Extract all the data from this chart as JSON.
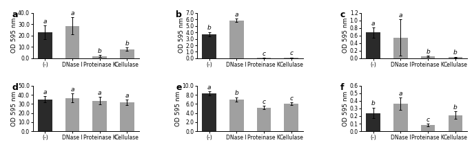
{
  "subplots": [
    {
      "label": "a",
      "ylim": [
        0,
        40.0
      ],
      "yticks": [
        0.0,
        10.0,
        20.0,
        30.0,
        40.0
      ],
      "ylabel": "OD 595 nm",
      "bars": [
        {
          "value": 23.0,
          "err": 6.0,
          "color": "#2a2a2a",
          "letter": "a"
        },
        {
          "value": 28.5,
          "err": 7.5,
          "color": "#a0a0a0",
          "letter": "a"
        },
        {
          "value": 2.0,
          "err": 0.8,
          "color": "#a0a0a0",
          "letter": "b"
        },
        {
          "value": 8.0,
          "err": 1.5,
          "color": "#a0a0a0",
          "letter": "b"
        }
      ]
    },
    {
      "label": "b",
      "ylim": [
        0,
        7.0
      ],
      "yticks": [
        0.0,
        1.0,
        2.0,
        3.0,
        4.0,
        5.0,
        6.0,
        7.0
      ],
      "ylabel": "OD 595 nm",
      "bars": [
        {
          "value": 3.7,
          "err": 0.35,
          "color": "#2a2a2a",
          "letter": "b"
        },
        {
          "value": 5.85,
          "err": 0.28,
          "color": "#a0a0a0",
          "letter": "a"
        },
        {
          "value": 0.05,
          "err": 0.02,
          "color": "#a0a0a0",
          "letter": "c"
        },
        {
          "value": 0.1,
          "err": 0.04,
          "color": "#a0a0a0",
          "letter": "c"
        }
      ]
    },
    {
      "label": "c",
      "ylim": [
        0,
        1.2
      ],
      "yticks": [
        0.0,
        0.2,
        0.4,
        0.6,
        0.8,
        1.0,
        1.2
      ],
      "ylabel": "OD 595 nm",
      "bars": [
        {
          "value": 0.68,
          "err": 0.13,
          "color": "#2a2a2a",
          "letter": "a"
        },
        {
          "value": 0.55,
          "err": 0.48,
          "color": "#a0a0a0",
          "letter": "a"
        },
        {
          "value": 0.05,
          "err": 0.02,
          "color": "#a0a0a0",
          "letter": "b"
        },
        {
          "value": 0.03,
          "err": 0.01,
          "color": "#a0a0a0",
          "letter": "b"
        }
      ]
    },
    {
      "label": "d",
      "ylim": [
        0,
        50.0
      ],
      "yticks": [
        0.0,
        10.0,
        20.0,
        30.0,
        40.0,
        50.0
      ],
      "ylabel": "OD 595 nm",
      "bars": [
        {
          "value": 35.0,
          "err": 3.5,
          "color": "#2a2a2a",
          "letter": "a"
        },
        {
          "value": 36.5,
          "err": 5.0,
          "color": "#a0a0a0",
          "letter": "a"
        },
        {
          "value": 33.5,
          "err": 4.0,
          "color": "#a0a0a0",
          "letter": "a"
        },
        {
          "value": 31.5,
          "err": 3.0,
          "color": "#a0a0a0",
          "letter": "a"
        }
      ]
    },
    {
      "label": "e",
      "ylim": [
        0,
        10.0
      ],
      "yticks": [
        0.0,
        2.0,
        4.0,
        6.0,
        8.0,
        10.0
      ],
      "ylabel": "OD 595 nm",
      "bars": [
        {
          "value": 8.3,
          "err": 0.45,
          "color": "#2a2a2a",
          "letter": "a"
        },
        {
          "value": 7.0,
          "err": 0.45,
          "color": "#a0a0a0",
          "letter": "b"
        },
        {
          "value": 5.2,
          "err": 0.35,
          "color": "#a0a0a0",
          "letter": "c"
        },
        {
          "value": 6.0,
          "err": 0.3,
          "color": "#a0a0a0",
          "letter": "c"
        }
      ]
    },
    {
      "label": "f",
      "ylim": [
        0,
        0.6
      ],
      "yticks": [
        0.0,
        0.1,
        0.2,
        0.3,
        0.4,
        0.5,
        0.6
      ],
      "ylabel": "OD 595 nm",
      "bars": [
        {
          "value": 0.24,
          "err": 0.07,
          "color": "#2a2a2a",
          "letter": "b"
        },
        {
          "value": 0.36,
          "err": 0.08,
          "color": "#a0a0a0",
          "letter": "a"
        },
        {
          "value": 0.08,
          "err": 0.02,
          "color": "#a0a0a0",
          "letter": "c"
        },
        {
          "value": 0.21,
          "err": 0.05,
          "color": "#a0a0a0",
          "letter": "b"
        }
      ]
    }
  ],
  "categories": [
    "(-)",
    "DNase I",
    "Proteinase K",
    "Cellulase"
  ],
  "bar_width": 0.52,
  "tick_fontsize": 5.5,
  "label_fontsize": 6.5,
  "letter_fontsize": 6.5,
  "panel_label_fontsize": 9.0,
  "background_color": "#ffffff"
}
